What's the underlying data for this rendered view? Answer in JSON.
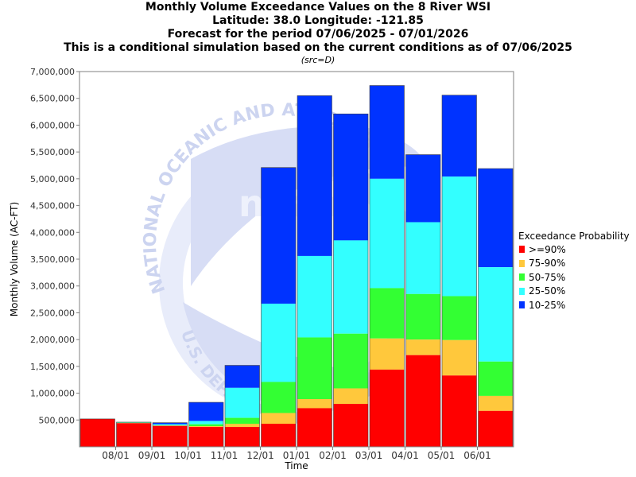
{
  "title": {
    "line1": "Monthly Volume Exceedance Values on the 8 River WSI",
    "line2": "Latitude: 38.0 Longitude: -121.85",
    "line3": "Forecast for the period 07/06/2025 - 07/01/2026",
    "line4": "This is a conditional simulation based on the current conditions as of 07/06/2025",
    "source": "(src=D)"
  },
  "watermark": {
    "text_top": "NATIONAL OCEANIC AND ATMOSPHERIC",
    "text_bottom": "U.S. DEPARTMENT OF COMMERCE",
    "logo": "noaa"
  },
  "chart_data": {
    "type": "bar",
    "stacked": true,
    "xlabel": "Time",
    "ylabel": "Monthly Volume (AC-FT)",
    "ylim": [
      0,
      7000000
    ],
    "y_ticks": [
      500000,
      1000000,
      1500000,
      2000000,
      2500000,
      3000000,
      3500000,
      4000000,
      4500000,
      5000000,
      5500000,
      6000000,
      6500000,
      7000000
    ],
    "y_tick_labels": [
      "500,000",
      "1,000,000",
      "1,500,000",
      "2,000,000",
      "2,500,000",
      "3,000,000",
      "3,500,000",
      "4,000,000",
      "4,500,000",
      "5,000,000",
      "5,500,000",
      "6,000,000",
      "6,500,000",
      "7,000,000"
    ],
    "x_tick_labels": [
      "08/01",
      "09/01",
      "10/01",
      "11/01",
      "12/01",
      "01/01",
      "02/01",
      "03/01",
      "04/01",
      "05/01",
      "06/01"
    ],
    "categories": [
      "Jul 2025",
      "Aug 2025",
      "Sep 2025",
      "Oct 2025",
      "Nov 2025",
      "Dec 2025",
      "Jan 2026",
      "Feb 2026",
      "Mar 2026",
      "Apr 2026",
      "May 2026",
      "Jun 2026"
    ],
    "grid": false,
    "legend_title": "Exceedance Probability",
    "legend_position": "right",
    "series": [
      {
        "name": ">=90%",
        "color": "#ff0000",
        "top_values": [
          520000,
          440000,
          390000,
          370000,
          370000,
          430000,
          720000,
          800000,
          1440000,
          1710000,
          1330000,
          670000
        ]
      },
      {
        "name": "75-90%",
        "color": "#ffc83c",
        "top_values": [
          520000,
          445000,
          395000,
          385000,
          430000,
          630000,
          890000,
          1090000,
          2020000,
          2000000,
          1990000,
          950000
        ]
      },
      {
        "name": "50-75%",
        "color": "#33ff33",
        "top_values": [
          520000,
          450000,
          400000,
          420000,
          540000,
          1210000,
          2040000,
          2110000,
          2960000,
          2850000,
          2810000,
          1590000
        ]
      },
      {
        "name": "25-50%",
        "color": "#33ffff",
        "top_values": [
          520000,
          455000,
          420000,
          480000,
          1100000,
          2670000,
          3560000,
          3850000,
          5000000,
          4190000,
          5040000,
          3350000
        ]
      },
      {
        "name": "10-25%",
        "color": "#0033ff",
        "top_values": [
          520000,
          460000,
          450000,
          830000,
          1520000,
          5210000,
          6550000,
          6210000,
          6740000,
          5450000,
          6560000,
          5190000
        ]
      }
    ]
  }
}
